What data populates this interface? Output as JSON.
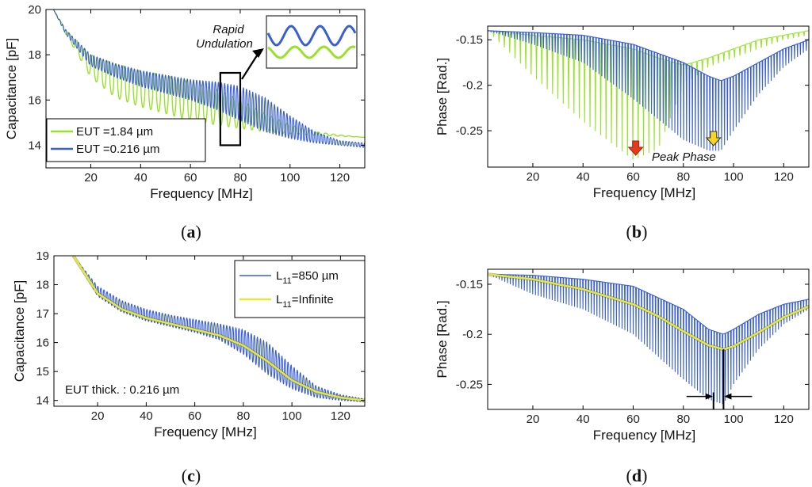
{
  "colors": {
    "green": "#99e22b",
    "blue": "#3a5fd0",
    "yellow": "#e3e836",
    "arrow_red": "#e53a1b",
    "arrow_yellow": "#f5d81e",
    "axis": "#000000"
  },
  "chart_data": [
    {
      "panel": "(a)",
      "caption_letter": "a",
      "type": "line",
      "xlabel": "Frequency [MHz]",
      "ylabel": "Capacitance [pF]",
      "xlim": [
        2,
        130
      ],
      "ylim": [
        13,
        20
      ],
      "xticks": [
        20,
        40,
        60,
        80,
        100,
        120
      ],
      "yticks": [
        14,
        16,
        18,
        20
      ],
      "legend": "bottom-left",
      "series": [
        {
          "name": "EUT =1.84   µm",
          "color": "green",
          "kind": "osc_cap",
          "x": [
            5,
            10,
            20,
            30,
            40,
            50,
            60,
            70,
            80,
            90,
            100,
            110,
            120,
            130
          ],
          "upper": [
            20.0,
            19.1,
            18.0,
            17.6,
            17.3,
            17.1,
            16.8,
            16.5,
            16.0,
            15.4,
            14.9,
            14.6,
            14.45,
            14.35
          ],
          "lower": [
            20.0,
            18.9,
            17.0,
            16.1,
            15.7,
            15.4,
            15.1,
            14.9,
            14.75,
            14.6,
            14.5,
            14.45,
            14.4,
            14.35
          ],
          "periods": 40
        },
        {
          "name": "EUT =0.216   µm",
          "color": "blue",
          "kind": "osc_cap",
          "x": [
            5,
            10,
            20,
            30,
            40,
            50,
            60,
            70,
            80,
            90,
            100,
            110,
            120,
            130
          ],
          "upper": [
            20.0,
            19.1,
            18.0,
            17.6,
            17.3,
            17.1,
            16.9,
            16.8,
            16.6,
            16.1,
            15.3,
            14.6,
            14.2,
            14.1
          ],
          "lower": [
            20.0,
            18.9,
            17.5,
            17.0,
            16.6,
            16.3,
            16.0,
            15.6,
            15.1,
            14.6,
            14.3,
            14.1,
            14.0,
            13.9
          ],
          "periods": 100
        }
      ],
      "zoom_box": {
        "x": [
          72,
          80
        ],
        "y": [
          14,
          17.2
        ]
      },
      "inset_label": [
        "Rapid",
        "Undulation"
      ]
    },
    {
      "panel": "(b)",
      "caption_letter": "b",
      "type": "line",
      "xlabel": "Frequency [MHz]",
      "ylabel": "Phase [Rad.]",
      "xlim": [
        2,
        130
      ],
      "ylim": [
        -0.29,
        -0.135
      ],
      "xticks": [
        20,
        40,
        60,
        80,
        100,
        120
      ],
      "yticks": [
        -0.15,
        -0.2,
        -0.25
      ],
      "series": [
        {
          "name": "EUT =1.84 µm",
          "color": "green",
          "kind": "osc_phase",
          "x": [
            2,
            20,
            40,
            60,
            70,
            80,
            90,
            100,
            110,
            120,
            130
          ],
          "base": [
            -0.14,
            -0.145,
            -0.15,
            -0.16,
            -0.17,
            -0.178,
            -0.17,
            -0.16,
            -0.15,
            -0.145,
            -0.14
          ],
          "tip": [
            -0.14,
            -0.19,
            -0.24,
            -0.282,
            -0.27,
            -0.2,
            -0.18,
            -0.17,
            -0.16,
            -0.15,
            -0.145
          ],
          "periods": 60
        },
        {
          "name": "EUT =0.216 µm",
          "color": "blue",
          "kind": "osc_phase",
          "x": [
            2,
            20,
            40,
            60,
            80,
            90,
            95,
            100,
            110,
            120,
            130
          ],
          "base": [
            -0.14,
            -0.142,
            -0.145,
            -0.155,
            -0.175,
            -0.19,
            -0.195,
            -0.19,
            -0.175,
            -0.16,
            -0.15
          ],
          "tip": [
            -0.14,
            -0.155,
            -0.175,
            -0.215,
            -0.26,
            -0.272,
            -0.272,
            -0.25,
            -0.21,
            -0.18,
            -0.16
          ],
          "periods": 110
        }
      ],
      "peak_markers": [
        {
          "x": 61,
          "color": "arrow_red"
        },
        {
          "x": 92,
          "color": "arrow_yellow"
        }
      ],
      "annotation": "Peak Phase"
    },
    {
      "panel": "(c)",
      "caption_letter": "c",
      "type": "line",
      "xlabel": "Frequency [MHz]",
      "ylabel": "Capacitance [pF]",
      "xlim": [
        2,
        130
      ],
      "ylim": [
        13.8,
        19
      ],
      "xticks": [
        20,
        40,
        60,
        80,
        100,
        120
      ],
      "yticks": [
        14,
        15,
        16,
        17,
        18,
        19
      ],
      "legend": "top-right",
      "series": [
        {
          "name_base": "L",
          "name_sub": "11",
          "name_rest": "=850  µm",
          "color": "blue",
          "kind": "osc_cap",
          "x": [
            10,
            20,
            30,
            40,
            50,
            60,
            70,
            80,
            90,
            100,
            110,
            120,
            130
          ],
          "upper": [
            19.0,
            17.95,
            17.45,
            17.15,
            16.95,
            16.8,
            16.65,
            16.45,
            16.0,
            15.2,
            14.5,
            14.2,
            14.05
          ],
          "lower": [
            19.0,
            17.6,
            17.05,
            16.75,
            16.55,
            16.35,
            16.1,
            15.6,
            14.9,
            14.4,
            14.1,
            14.0,
            13.95
          ],
          "periods": 95
        },
        {
          "name_base": "L",
          "name_sub": "11",
          "name_rest": "=Infinite",
          "color": "yellow",
          "kind": "curve",
          "x": [
            10,
            20,
            30,
            40,
            50,
            60,
            70,
            80,
            90,
            100,
            110,
            120,
            130
          ],
          "y": [
            19.0,
            17.7,
            17.15,
            16.85,
            16.65,
            16.45,
            16.25,
            15.9,
            15.35,
            14.7,
            14.3,
            14.1,
            14.0
          ]
        }
      ],
      "annotation": "EUT thick. : 0.216 µm"
    },
    {
      "panel": "(d)",
      "caption_letter": "d",
      "type": "line",
      "xlabel": "Frequency [MHz]",
      "ylabel": "Phase [Rad.]",
      "xlim": [
        2,
        130
      ],
      "ylim": [
        -0.275,
        -0.135
      ],
      "xticks": [
        20,
        40,
        60,
        80,
        100,
        120
      ],
      "yticks": [
        -0.15,
        -0.2,
        -0.25
      ],
      "series": [
        {
          "name": "L11 =850 µm",
          "color": "blue",
          "kind": "osc_phase",
          "x": [
            2,
            20,
            40,
            60,
            80,
            90,
            96,
            100,
            110,
            120,
            130
          ],
          "base": [
            -0.14,
            -0.141,
            -0.145,
            -0.152,
            -0.175,
            -0.195,
            -0.2,
            -0.195,
            -0.18,
            -0.17,
            -0.165
          ],
          "tip": [
            -0.14,
            -0.16,
            -0.175,
            -0.2,
            -0.245,
            -0.265,
            -0.27,
            -0.25,
            -0.215,
            -0.19,
            -0.175
          ],
          "periods": 115
        },
        {
          "name": "L11 =Infinite",
          "color": "yellow",
          "kind": "curve",
          "x": [
            2,
            20,
            40,
            60,
            70,
            80,
            90,
            96,
            100,
            110,
            120,
            130
          ],
          "y": [
            -0.14,
            -0.145,
            -0.155,
            -0.17,
            -0.182,
            -0.197,
            -0.211,
            -0.215,
            -0.212,
            -0.198,
            -0.183,
            -0.172
          ]
        }
      ],
      "markers": {
        "peak_a": 92,
        "peak_b": 96
      }
    }
  ]
}
